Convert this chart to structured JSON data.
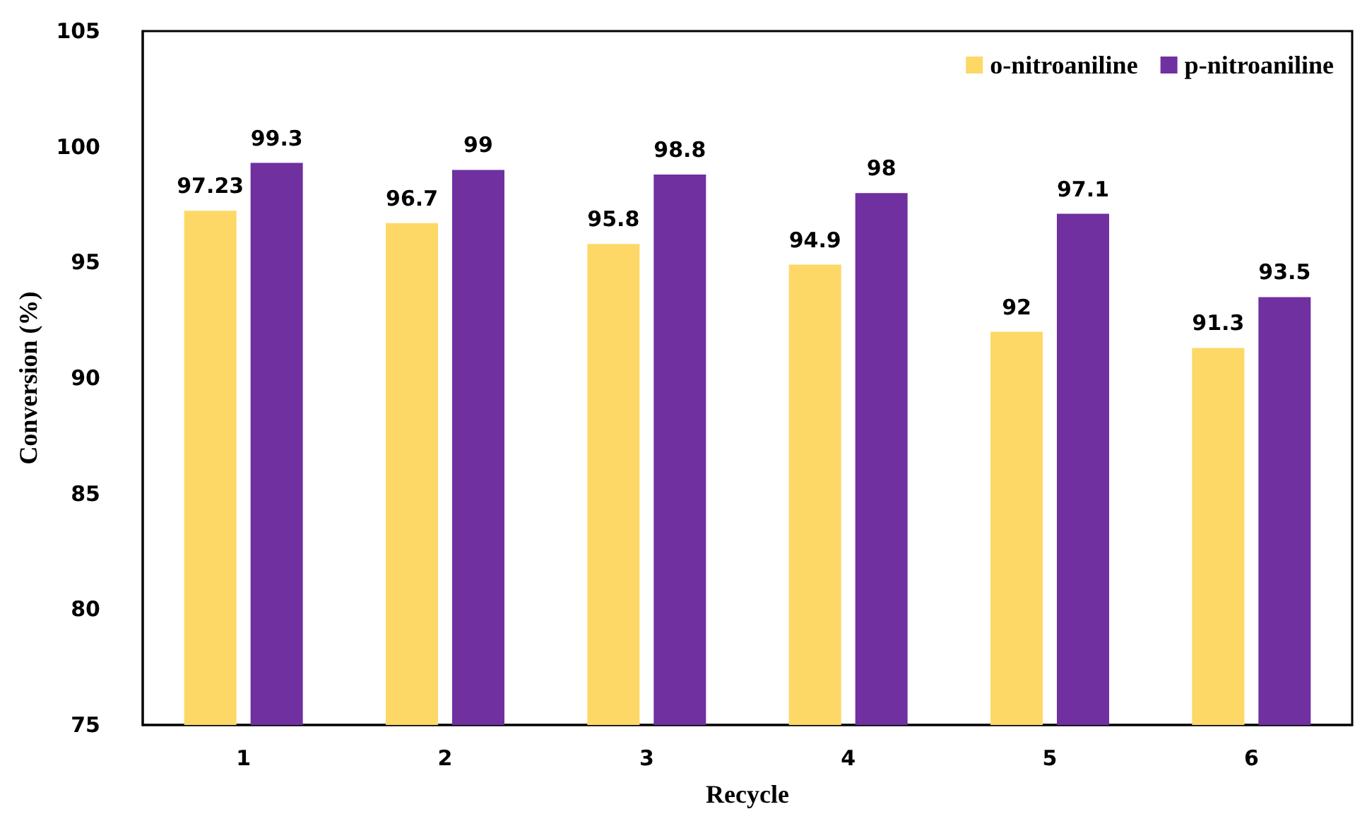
{
  "chart_data": {
    "type": "bar",
    "xlabel": "Recycle",
    "ylabel": "Conversion (%)",
    "categories": [
      "1",
      "2",
      "3",
      "4",
      "5",
      "6"
    ],
    "series": [
      {
        "name": "o-nitroaniline",
        "color": "#fdd866",
        "values": [
          97.23,
          96.7,
          95.8,
          94.9,
          92,
          91.3
        ]
      },
      {
        "name": "p-nitroaniline",
        "color": "#7030a0",
        "values": [
          99.3,
          99,
          98.8,
          98,
          97.1,
          93.5
        ]
      }
    ],
    "ylim": [
      75,
      105
    ],
    "yticks": [
      75,
      80,
      85,
      90,
      95,
      100,
      105
    ],
    "grid": false,
    "legend": "top right",
    "data_labels": true
  }
}
